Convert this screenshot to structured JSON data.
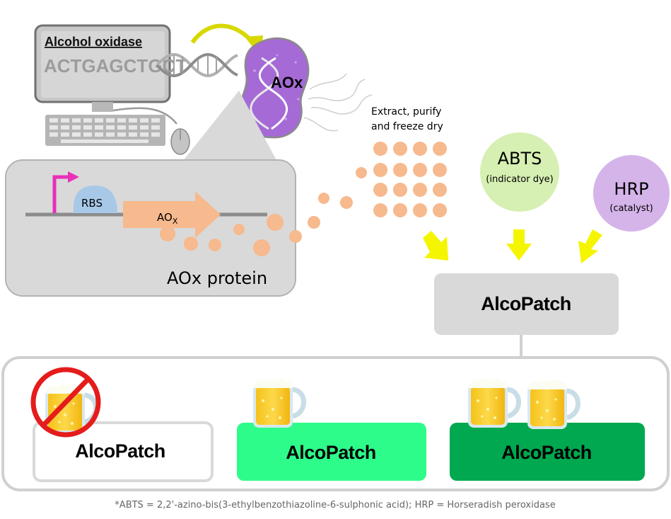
{
  "gene": {
    "title": "Alcohol oxidase",
    "sequence": "ACTGAGCTGCT"
  },
  "cell": {
    "label": "AOx"
  },
  "construct": {
    "rbs_label": "RBS",
    "gene_label_main": "AO",
    "gene_label_sub": "X",
    "protein_label": "AOx protein"
  },
  "process": {
    "step_line1": "Extract, purify",
    "step_line2": "and freeze dry"
  },
  "reagents": {
    "abts_name": "ABTS",
    "abts_desc": "(indicator dye)",
    "hrp_name": "HRP",
    "hrp_desc": "(catalyst)",
    "abts_color": "#d6efb3",
    "hrp_color": "#d5b4ea"
  },
  "patch": {
    "main_label": "AlcoPatch"
  },
  "results": [
    {
      "label": "AlcoPatch",
      "beers": 0,
      "crossed": true,
      "color": "#ffffff"
    },
    {
      "label": "AlcoPatch",
      "beers": 1,
      "crossed": false,
      "color": "#2dfc8a"
    },
    {
      "label": "AlcoPatch",
      "beers": 2,
      "crossed": false,
      "color": "#00a84f"
    }
  ],
  "colors": {
    "protein_dots": "#f7b98e",
    "arrow_yellow": "#f5f500",
    "promoter": "#e830b8",
    "rbs": "#a8c8e8",
    "gene_arrow": "#f7b98e",
    "cell": "#a56ad6"
  },
  "footnote": "*ABTS = 2,2'-azino-bis(3-ethylbenzothiazoline-6-sulphonic acid); HRP = Horseradish peroxidase"
}
